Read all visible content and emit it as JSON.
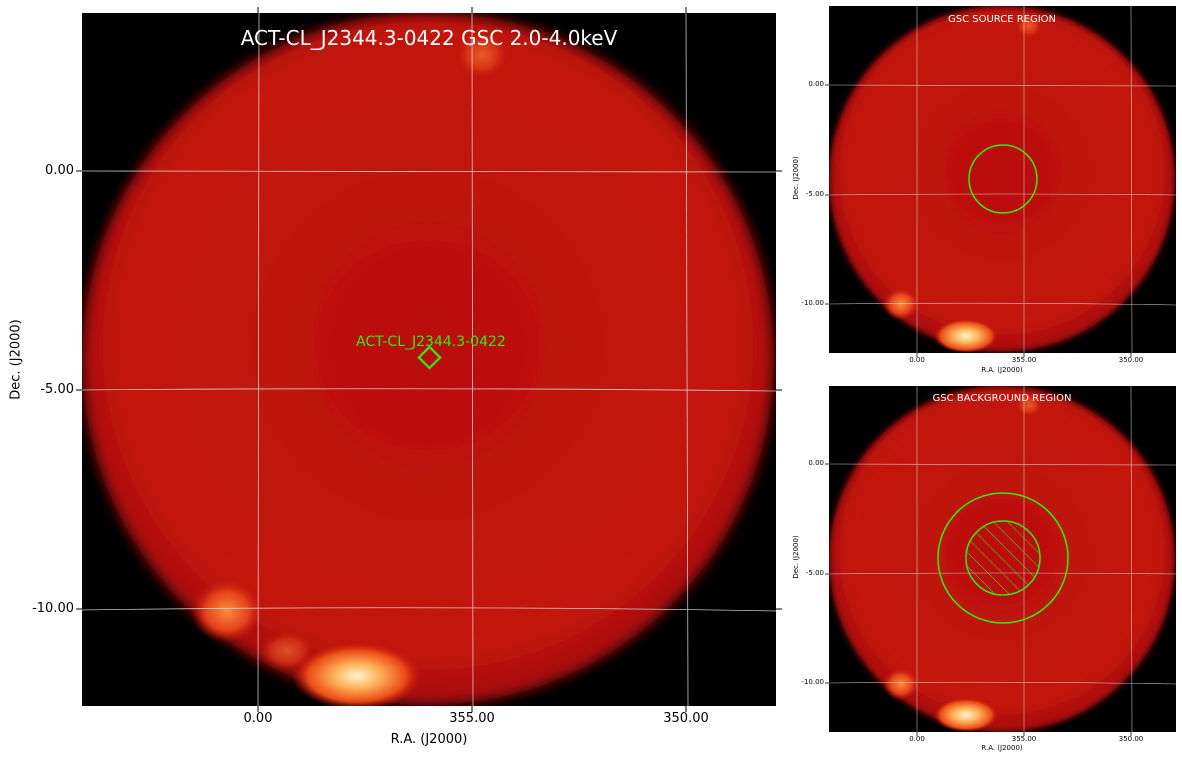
{
  "main": {
    "title": "ACT-CL_J2344.3-0422 GSC 2.0-4.0keV",
    "source_label": "ACT-CL_J2344.3-0422",
    "yticks": [
      "0.00",
      "-5.00",
      "-10.00"
    ],
    "xticks": [
      "0.00",
      "355.00",
      "350.00"
    ],
    "ylabel": "Dec. (J2000)",
    "xlabel": "R.A. (J2000)"
  },
  "source_panel": {
    "title": "GSC SOURCE REGION",
    "yticks": [
      "0.00",
      "-5.00",
      "-10.00"
    ],
    "xticks": [
      "0.00",
      "355.00",
      "350.00"
    ],
    "ylabel": "Dec. (J2000)",
    "xlabel": "R.A. (J2000)"
  },
  "background_panel": {
    "title": "GSC BACKGROUND REGION",
    "yticks": [
      "0.00",
      "-5.00",
      "-10.00"
    ],
    "xticks": [
      "0.00",
      "355.00",
      "350.00"
    ],
    "ylabel": "Dec. (J2000)",
    "xlabel": "R.A. (J2000)"
  },
  "colors": {
    "disk": "#c0120b",
    "region": "#33ee00",
    "grid": "#e6e6e6",
    "hot": "#fff3c0"
  }
}
